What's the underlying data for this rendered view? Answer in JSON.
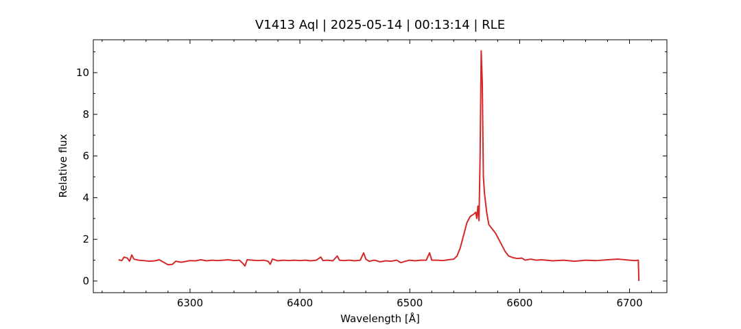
{
  "chart_data": {
    "type": "line",
    "title": "V1413 Aql | 2025-05-14 | 00:13:14 | RLE",
    "x_label": "Wavelength [Å]",
    "y_label": "Relative flux",
    "xlim": [
      6212,
      6734
    ],
    "ylim": [
      -0.56,
      11.58
    ],
    "xticks": [
      6300,
      6400,
      6500,
      6600,
      6700
    ],
    "yticks": [
      0,
      2,
      4,
      6,
      8,
      10
    ],
    "xminorticks": [
      6220,
      6240,
      6260,
      6280,
      6320,
      6340,
      6360,
      6380,
      6420,
      6440,
      6460,
      6480,
      6520,
      6540,
      6560,
      6580,
      6620,
      6640,
      6660,
      6680,
      6720
    ],
    "yminorticks": [
      1,
      3,
      5,
      7,
      9,
      11
    ],
    "series": [
      {
        "color": "#d62728",
        "x": [
          6235,
          6238,
          6240,
          6243,
          6245,
          6247,
          6249,
          6253,
          6258,
          6263,
          6268,
          6272,
          6276,
          6280,
          6284,
          6287,
          6292,
          6297,
          6300,
          6305,
          6310,
          6315,
          6320,
          6325,
          6330,
          6335,
          6340,
          6345,
          6348,
          6350,
          6352,
          6357,
          6362,
          6367,
          6371,
          6373,
          6375,
          6380,
          6385,
          6390,
          6395,
          6400,
          6405,
          6410,
          6415,
          6419,
          6421,
          6425,
          6430,
          6434,
          6436,
          6440,
          6445,
          6450,
          6455,
          6458,
          6460,
          6463,
          6468,
          6473,
          6478,
          6483,
          6488,
          6492,
          6496,
          6500,
          6505,
          6510,
          6515,
          6518,
          6520,
          6525,
          6530,
          6535,
          6540,
          6543,
          6546,
          6549,
          6552,
          6555,
          6558,
          6560,
          6561,
          6562,
          6563,
          6564,
          6565,
          6566,
          6567,
          6568,
          6570,
          6572,
          6575,
          6578,
          6581,
          6584,
          6587,
          6590,
          6594,
          6598,
          6602,
          6605,
          6610,
          6615,
          6620,
          6630,
          6640,
          6650,
          6660,
          6670,
          6680,
          6690,
          6700,
          6705,
          6708,
          6708.5
        ],
        "values": [
          1.02,
          0.98,
          1.15,
          1.1,
          0.95,
          1.25,
          1.05,
          1.0,
          0.98,
          0.95,
          0.97,
          1.02,
          0.9,
          0.78,
          0.8,
          0.95,
          0.9,
          0.95,
          0.98,
          0.97,
          1.02,
          0.97,
          1.0,
          0.98,
          1.0,
          1.02,
          0.98,
          1.0,
          0.85,
          0.72,
          1.02,
          1.0,
          0.98,
          1.0,
          0.95,
          0.8,
          1.05,
          0.97,
          1.0,
          0.98,
          1.0,
          0.98,
          1.0,
          0.97,
          1.0,
          1.15,
          0.98,
          1.0,
          0.97,
          1.2,
          1.0,
          0.98,
          1.0,
          0.97,
          1.0,
          1.35,
          1.05,
          0.95,
          1.0,
          0.92,
          0.97,
          0.95,
          1.0,
          0.88,
          0.95,
          1.0,
          0.97,
          1.0,
          1.0,
          1.35,
          1.0,
          1.0,
          0.98,
          1.02,
          1.05,
          1.2,
          1.6,
          2.2,
          2.8,
          3.1,
          3.2,
          3.3,
          3.0,
          3.6,
          2.9,
          6.0,
          11.05,
          9.5,
          5.0,
          4.2,
          3.3,
          2.7,
          2.5,
          2.3,
          2.0,
          1.7,
          1.4,
          1.2,
          1.12,
          1.08,
          1.1,
          1.0,
          1.05,
          1.0,
          1.02,
          0.97,
          1.0,
          0.95,
          1.0,
          0.98,
          1.02,
          1.05,
          1.0,
          0.98,
          1.0,
          0.0
        ]
      }
    ]
  }
}
